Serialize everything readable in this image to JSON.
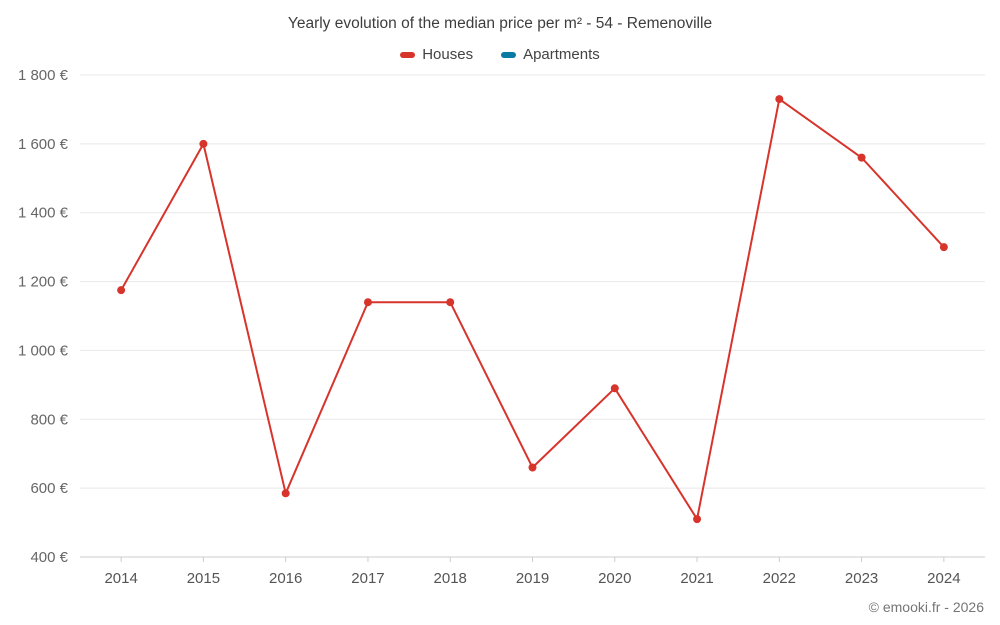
{
  "title": "Yearly evolution of the median price per m² - 54 - Remenoville",
  "footer": "© emooki.fr - 2026",
  "chart_data": {
    "type": "line",
    "title": "Yearly evolution of the median price per m² - 54 - Remenoville",
    "categories": [
      "2014",
      "2015",
      "2016",
      "2017",
      "2018",
      "2019",
      "2020",
      "2021",
      "2022",
      "2023",
      "2024"
    ],
    "series": [
      {
        "name": "Houses",
        "color": "#d7342c",
        "values": [
          1175,
          1600,
          585,
          1140,
          1140,
          660,
          890,
          510,
          1730,
          1560,
          1300
        ]
      },
      {
        "name": "Apartments",
        "color": "#0c7ba3",
        "values": []
      }
    ],
    "xlabel": "",
    "ylabel": "",
    "ylim": [
      400,
      1800
    ],
    "ytick_step": 200,
    "ytick_labels": [
      "400 €",
      "600 €",
      "800 €",
      "1 000 €",
      "1 200 €",
      "1 400 €",
      "1 600 €",
      "1 800 €"
    ],
    "grid": "horizontal",
    "legend_position": "top",
    "axis_text_color": "#666666",
    "grid_color": "#e8e8e8",
    "axis_line_color": "#cccccc"
  }
}
